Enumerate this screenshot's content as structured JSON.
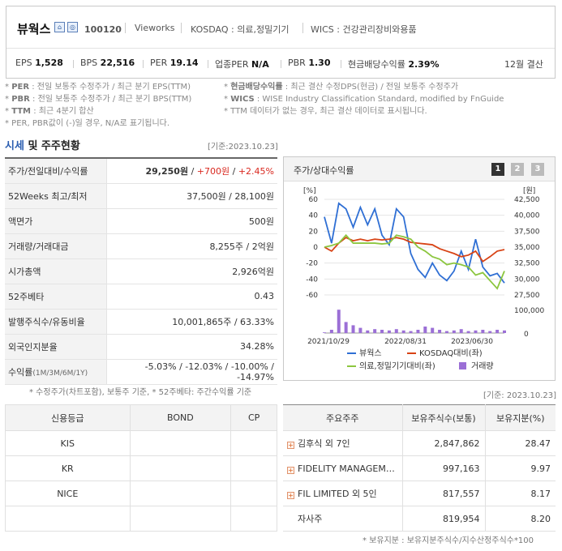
{
  "header": {
    "company": "뷰웍스",
    "code": "100120",
    "brand": "Vieworks",
    "market": "KOSDAQ : 의료,정밀기기",
    "wics": "WICS : 건강관리장비와용품",
    "metrics": [
      {
        "label": "EPS",
        "value": "1,528"
      },
      {
        "label": "BPS",
        "value": "22,516"
      },
      {
        "label": "PER",
        "value": "19.14"
      },
      {
        "label": "업종PER",
        "value": "N/A"
      },
      {
        "label": "PBR",
        "value": "1.30"
      },
      {
        "label": "현금배당수익률",
        "value": "2.39%"
      }
    ],
    "fiscal": "12월 결산"
  },
  "notes": {
    "l1_key": "PER",
    "l1": ": 전일 보통주 수정주가 / 최근 분기 EPS(TTM)",
    "l2_key": "PBR",
    "l2": ": 전일 보통주 수정주가 / 최근 분기 BPS(TTM)",
    "l3_key": "TTM",
    "l3": ": 최근 4분기 합산",
    "l4": "* PER, PBR값이 (-)일 경우, N/A로 표기됩니다.",
    "r1_key": "현금배당수익률",
    "r1": ": 최근 결산 수정DPS(현금) / 전일 보통주 수정주가",
    "r2_key": "WICS",
    "r2": ": WISE Industry Classification Standard, modified by FnGuide",
    "r3": "* TTM 데이터가 없는 경우, 최근 결산 데이터로 표시됩니다."
  },
  "section": {
    "title_em": "시세",
    "title_rest": " 및 주주현황",
    "date": "[기준:2023.10.23]"
  },
  "quote": {
    "price_label": "주가/전일대비/수익률",
    "price": "29,250원",
    "change": "+700원",
    "pct": "+2.45%",
    "rows": [
      {
        "label": "52Weeks 최고/최저",
        "value": "37,500원 / 28,100원"
      },
      {
        "label": "액면가",
        "value": "500원"
      },
      {
        "label": "거래량/거래대금",
        "value": "8,255주 / 2억원"
      },
      {
        "label": "시가총액",
        "value": "2,926억원"
      },
      {
        "label": "52주베타",
        "value": "0.43"
      },
      {
        "label": "발행주식수/유동비율",
        "value": "10,001,865주 / 63.33%"
      },
      {
        "label": "외국인지분율",
        "value": "34.28%"
      }
    ],
    "returns_label": "수익률",
    "returns_period": "(1M/3M/6M/1Y)",
    "returns": "-5.03% / -12.03% / -10.00% / -14.97%"
  },
  "chart_panel": {
    "title": "주가/상대수익률",
    "pages": [
      "1",
      "2",
      "3"
    ]
  },
  "chart_data": {
    "type": "line",
    "x_labels": [
      "2021/10/29",
      "2022/08/31",
      "2023/06/30"
    ],
    "left_axis_label": "[%]",
    "left_ticks": [
      "60",
      "40",
      "20",
      "0",
      "-20",
      "-40",
      "-60"
    ],
    "right_axis_label": "[원]",
    "right_ticks": [
      "42,500",
      "40,000",
      "37,500",
      "35,000",
      "32,500",
      "30,000",
      "27,500"
    ],
    "volume_ticks": [
      "100,000",
      "0"
    ],
    "ylim_pct": [
      -60,
      60
    ],
    "series": [
      {
        "name": "뷰웍스",
        "color": "#2f6fd4",
        "values": [
          38,
          5,
          55,
          48,
          25,
          50,
          28,
          48,
          15,
          3,
          48,
          38,
          -8,
          -28,
          -38,
          -20,
          -35,
          -42,
          -30,
          -5,
          -28,
          10,
          -25,
          -36,
          -33,
          -45
        ]
      },
      {
        "name": "KOSDAQ대비(좌)",
        "color": "#d84315",
        "values": [
          0,
          -5,
          5,
          12,
          8,
          10,
          8,
          10,
          9,
          10,
          12,
          10,
          6,
          5,
          4,
          3,
          -2,
          -5,
          -8,
          -12,
          -10,
          -5,
          -18,
          -12,
          -5,
          -3
        ]
      },
      {
        "name": "의료,정밀기기대비(좌)",
        "color": "#8cc63f",
        "values": [
          0,
          2,
          5,
          15,
          5,
          5,
          5,
          5,
          4,
          5,
          15,
          13,
          10,
          0,
          -5,
          -12,
          -15,
          -22,
          -20,
          -22,
          -25,
          -35,
          -32,
          -42,
          -52,
          -30
        ]
      },
      {
        "name": "거래량",
        "color": "#9b6fd6",
        "values": [
          2,
          10,
          72,
          34,
          24,
          16,
          8,
          12,
          10,
          8,
          12,
          8,
          6,
          10,
          20,
          16,
          10,
          6,
          8,
          12,
          6,
          8,
          10,
          6,
          10,
          8
        ]
      }
    ]
  },
  "footnote": "* 수정주가(차트포함), 보통주 기준, * 52주베타: 주간수익률 기준",
  "holder_date": "[기준: 2023.10.23]",
  "credit": {
    "headers": [
      "신용등급",
      "BOND",
      "CP"
    ],
    "rows": [
      "KIS",
      "KR",
      "NICE",
      ""
    ]
  },
  "holders": {
    "headers": [
      "주요주주",
      "보유주식수(보통)",
      "보유지분(%)"
    ],
    "rows": [
      {
        "name": "김후식 외 7인",
        "shares": "2,847,862",
        "pct": "28.47",
        "plus": true
      },
      {
        "name": "FIDELITY MANAGEM…",
        "shares": "997,163",
        "pct": "9.97",
        "plus": true
      },
      {
        "name": "FIL LIMITED 외 5인",
        "shares": "817,557",
        "pct": "8.17",
        "plus": true
      },
      {
        "name": "자사주",
        "shares": "819,954",
        "pct": "8.20",
        "plus": false
      }
    ],
    "note": "* 보유지분 : 보유지분주식수/지수산정주식수*100"
  }
}
